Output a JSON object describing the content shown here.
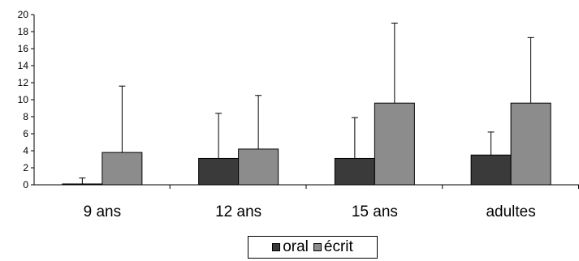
{
  "chart_data": {
    "type": "bar",
    "categories": [
      "9 ans",
      "12 ans",
      "15 ans",
      "adultes"
    ],
    "series": [
      {
        "name": "oral",
        "color": "#3a3a3a",
        "values": [
          0.1,
          3.1,
          3.1,
          3.5
        ],
        "error_upper": [
          0.8,
          8.4,
          7.9,
          6.2
        ]
      },
      {
        "name": "écrit",
        "color": "#8c8c8c",
        "values": [
          3.8,
          4.2,
          9.6,
          9.6
        ],
        "error_upper": [
          11.6,
          10.5,
          19.0,
          17.3
        ]
      }
    ],
    "ylim": [
      0,
      20
    ],
    "yticks": [
      0,
      2,
      4,
      6,
      8,
      10,
      12,
      14,
      16,
      18,
      20
    ],
    "legend_position": "bottom",
    "grid": false,
    "error_bars": "upper"
  }
}
